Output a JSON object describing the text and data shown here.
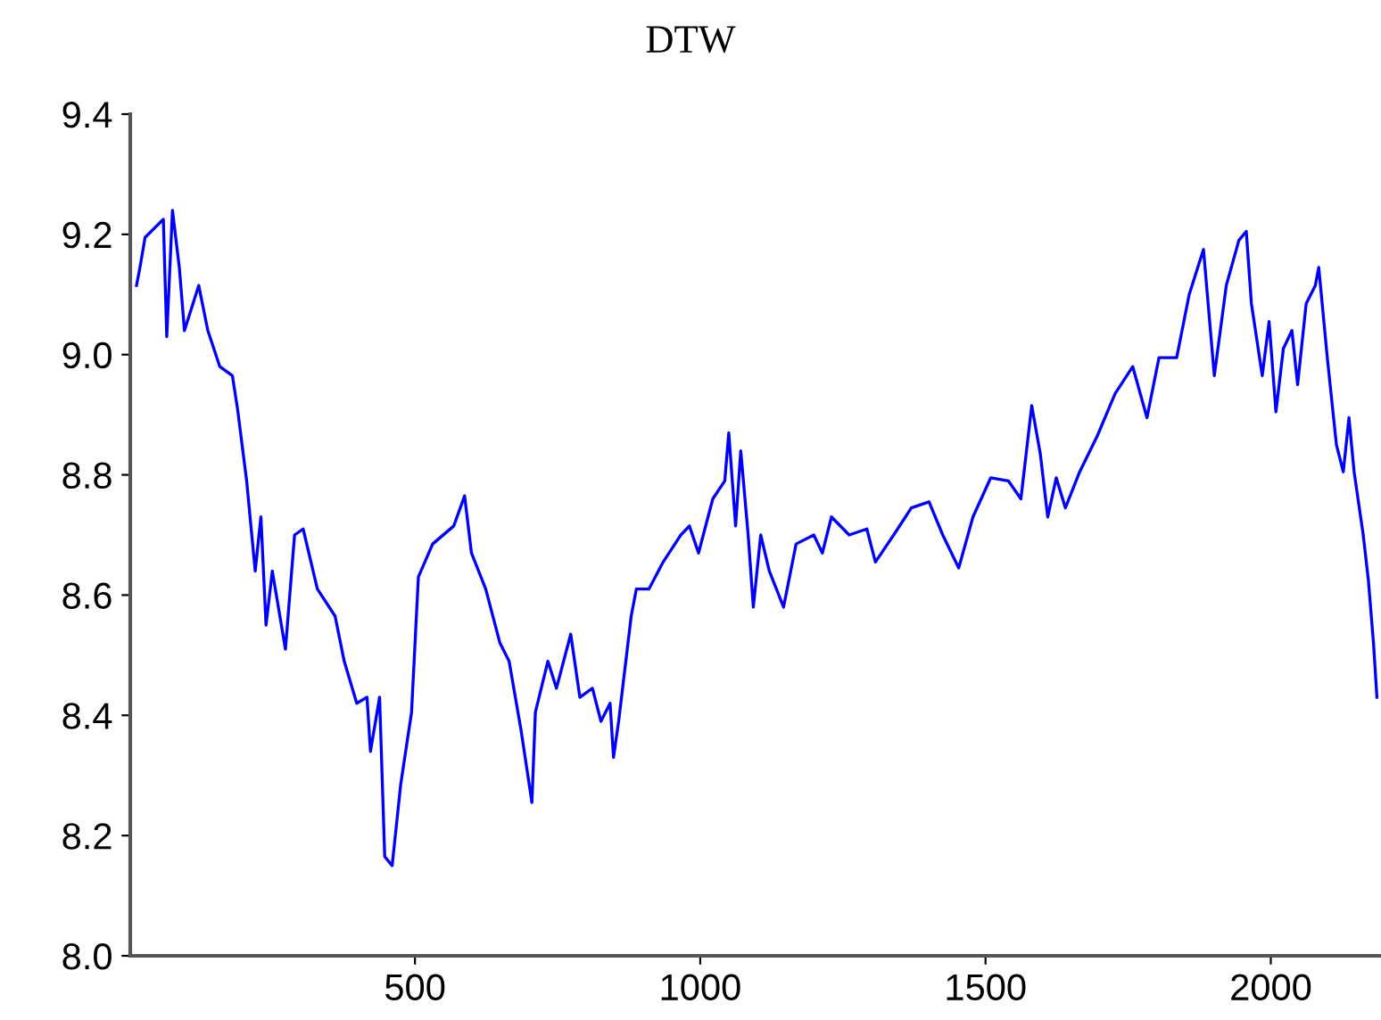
{
  "chart_data": {
    "type": "line",
    "title": "DTW",
    "x": [
      12,
      18,
      27,
      59,
      65,
      75,
      87,
      96,
      121,
      137,
      158,
      180,
      189,
      205,
      220,
      230,
      239,
      250,
      273,
      289,
      304,
      329,
      360,
      376,
      398,
      416,
      422,
      438,
      447,
      460,
      475,
      494,
      506,
      531,
      568,
      587,
      599,
      624,
      649,
      665,
      686,
      705,
      711,
      733,
      748,
      773,
      789,
      811,
      826,
      842,
      848,
      857,
      879,
      888,
      910,
      935,
      966,
      981,
      997,
      1022,
      1043,
      1050,
      1062,
      1071,
      1084,
      1093,
      1106,
      1121,
      1146,
      1168,
      1199,
      1214,
      1230,
      1261,
      1292,
      1307,
      1339,
      1370,
      1401,
      1425,
      1453,
      1478,
      1509,
      1540,
      1562,
      1581,
      1596,
      1609,
      1624,
      1640,
      1665,
      1696,
      1727,
      1758,
      1783,
      1804,
      1835,
      1857,
      1882,
      1901,
      1922,
      1944,
      1957,
      1966,
      1985,
      1997,
      2009,
      2022,
      2037,
      2047,
      2062,
      2078,
      2084,
      2099,
      2115,
      2127,
      2137,
      2146,
      2162,
      2171,
      2180,
      2186
    ],
    "series": [
      {
        "color": "#0000ff",
        "values": [
          9.115,
          9.145,
          9.195,
          9.225,
          9.03,
          9.24,
          9.145,
          9.04,
          9.115,
          9.04,
          8.98,
          8.965,
          8.91,
          8.79,
          8.64,
          8.73,
          8.55,
          8.64,
          8.51,
          8.7,
          8.71,
          8.61,
          8.565,
          8.49,
          8.42,
          8.43,
          8.34,
          8.43,
          8.165,
          8.15,
          8.285,
          8.405,
          8.63,
          8.685,
          8.715,
          8.765,
          8.67,
          8.61,
          8.52,
          8.49,
          8.375,
          8.255,
          8.405,
          8.49,
          8.445,
          8.535,
          8.43,
          8.445,
          8.39,
          8.42,
          8.33,
          8.39,
          8.565,
          8.61,
          8.61,
          8.655,
          8.7,
          8.715,
          8.67,
          8.76,
          8.79,
          8.87,
          8.715,
          8.84,
          8.7,
          8.58,
          8.7,
          8.64,
          8.58,
          8.685,
          8.7,
          8.67,
          8.73,
          8.7,
          8.71,
          8.655,
          8.7,
          8.745,
          8.755,
          8.7,
          8.645,
          8.73,
          8.795,
          8.79,
          8.76,
          8.915,
          8.835,
          8.73,
          8.795,
          8.745,
          8.805,
          8.865,
          8.935,
          8.98,
          8.895,
          8.995,
          8.995,
          9.1,
          9.175,
          8.965,
          9.115,
          9.19,
          9.205,
          9.085,
          8.965,
          9.055,
          8.905,
          9.01,
          9.04,
          8.95,
          9.085,
          9.115,
          9.145,
          8.995,
          8.85,
          8.805,
          8.895,
          8.805,
          8.7,
          8.625,
          8.52,
          8.43
        ]
      }
    ],
    "xlim": [
      1,
      2190
    ],
    "xticks": [
      500,
      1000,
      1500,
      2000
    ],
    "ylim": [
      8.0,
      9.4
    ],
    "yticks": [
      {
        "value": 8,
        "label": "8.0"
      },
      8.2,
      8.4,
      8.6,
      8.8,
      {
        "value": 9,
        "label": "9.0"
      },
      9.2,
      9.4
    ],
    "grid": false,
    "legend": false,
    "line_style": "solid"
  }
}
